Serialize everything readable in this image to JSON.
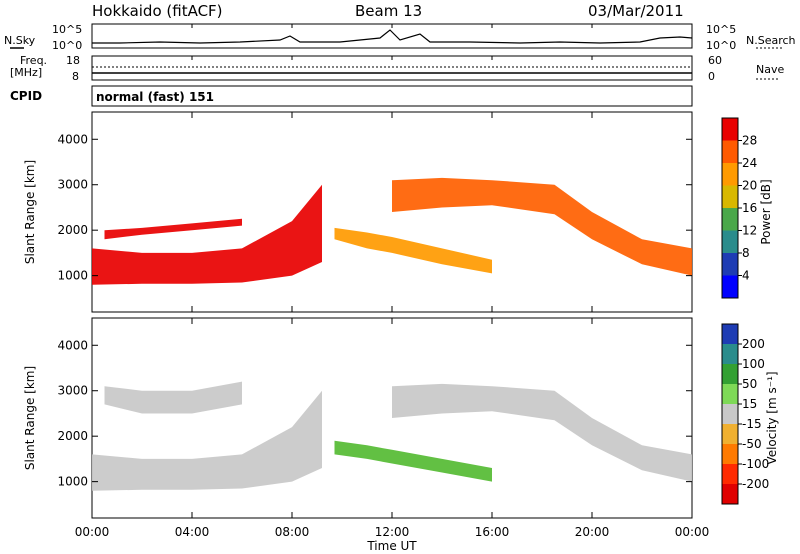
{
  "header": {
    "station": "Hokkaido (fitACF)",
    "beam": "Beam 13",
    "date": "03/Mar/2011"
  },
  "status_panels": {
    "nsky_label": "N.Sky",
    "nsearch_label": "N.Search",
    "freq_label_line1": "Freq.",
    "freq_label_line2": "[MHz]",
    "nave_label": "Nave",
    "cpid_label": "CPID",
    "cpid_text": "normal (fast) 151",
    "noise_ticks_left": [
      "10^5",
      "10^0"
    ],
    "noise_ticks_right": [
      "10^5",
      "10^0"
    ],
    "freq_ticks": [
      "18",
      "8"
    ],
    "nave_ticks": [
      "60",
      "0"
    ]
  },
  "chart_data": [
    {
      "type": "heatmap",
      "name": "Power",
      "ylabel": "Slant Range [km]",
      "xlabel": "Time UT",
      "colorbar_label": "Power [dB]",
      "colorbar_ticks": [
        "28",
        "24",
        "20",
        "16",
        "12",
        "8",
        "4"
      ],
      "colorbar_colors": [
        "#e80000",
        "#ff5a00",
        "#ff9a00",
        "#d8b800",
        "#4aa84a",
        "#2a8c8c",
        "#1e3cb4",
        "#0000ff"
      ],
      "x_ticks": [
        "00:00",
        "04:00",
        "08:00",
        "12:00",
        "16:00",
        "20:00",
        "00:00"
      ],
      "y_ticks": [
        "1000",
        "2000",
        "3000",
        "4000"
      ],
      "xlim": [
        0,
        24
      ],
      "ylim": [
        200,
        4600
      ],
      "bands": [
        {
          "x": [
            0,
            2,
            4,
            6,
            8,
            9.2
          ],
          "lo": [
            800,
            820,
            820,
            850,
            1000,
            1300
          ],
          "hi": [
            1600,
            1500,
            1500,
            1600,
            2200,
            3000
          ],
          "color": "#e80000"
        },
        {
          "x": [
            12,
            14,
            16,
            18.5,
            20,
            22,
            24
          ],
          "lo": [
            2400,
            2500,
            2550,
            2350,
            1800,
            1250,
            1000
          ],
          "hi": [
            3100,
            3150,
            3100,
            3000,
            2400,
            1800,
            1600
          ],
          "color": "#ff6000"
        },
        {
          "x": [
            9.7,
            11,
            12,
            14,
            16
          ],
          "lo": [
            1800,
            1600,
            1500,
            1250,
            1050
          ],
          "hi": [
            2050,
            1950,
            1850,
            1600,
            1350
          ],
          "color": "#ff9a00"
        },
        {
          "x": [
            0.5,
            2,
            4,
            6
          ],
          "lo": [
            1800,
            1900,
            2000,
            2100
          ],
          "hi": [
            2000,
            2050,
            2150,
            2250
          ],
          "color": "#e80000"
        }
      ]
    },
    {
      "type": "heatmap",
      "name": "Velocity",
      "ylabel": "Slant Range [km]",
      "xlabel": "Time UT",
      "colorbar_label": "Velocity [m s⁻¹]",
      "colorbar_ticks": [
        "200",
        "100",
        "50",
        "15",
        "-15",
        "-50",
        "-100",
        "-200"
      ],
      "colorbar_colors": [
        "#1e3cb4",
        "#2a8c8c",
        "#33a033",
        "#7ed957",
        "#c8c8c8",
        "#f0b030",
        "#ff7a00",
        "#ff2a00",
        "#e00000"
      ],
      "x_ticks": [
        "00:00",
        "04:00",
        "08:00",
        "12:00",
        "16:00",
        "20:00",
        "00:00"
      ],
      "y_ticks": [
        "1000",
        "2000",
        "3000",
        "4000"
      ],
      "xlim": [
        0,
        24
      ],
      "ylim": [
        200,
        4600
      ],
      "bands": [
        {
          "x": [
            0,
            2,
            4,
            6,
            8,
            9.2
          ],
          "lo": [
            800,
            820,
            820,
            850,
            1000,
            1300
          ],
          "hi": [
            1600,
            1500,
            1500,
            1600,
            2200,
            3000
          ],
          "color": "#c8c8c8"
        },
        {
          "x": [
            12,
            14,
            16,
            18.5,
            20,
            22,
            24
          ],
          "lo": [
            2400,
            2500,
            2550,
            2350,
            1800,
            1250,
            1000
          ],
          "hi": [
            3100,
            3150,
            3100,
            3000,
            2400,
            1800,
            1600
          ],
          "color": "#c8c8c8"
        },
        {
          "x": [
            9.7,
            11,
            12,
            14,
            16
          ],
          "lo": [
            1600,
            1500,
            1400,
            1200,
            1000
          ],
          "hi": [
            1900,
            1800,
            1700,
            1500,
            1300
          ],
          "color": "#55bb33"
        },
        {
          "x": [
            0.5,
            2,
            4,
            6
          ],
          "lo": [
            2700,
            2500,
            2500,
            2700
          ],
          "hi": [
            3100,
            3000,
            3000,
            3200
          ],
          "color": "#c8c8c8"
        }
      ]
    }
  ]
}
